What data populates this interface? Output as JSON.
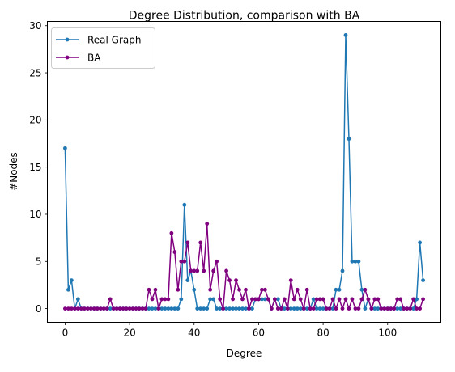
{
  "chart_data": {
    "type": "line",
    "title": "Degree Distribution, comparison with BA",
    "xlabel": "Degree",
    "ylabel": "#Nodes",
    "xlim": [
      -5.5,
      116.5
    ],
    "ylim": [
      -1.45,
      30.45
    ],
    "xticks": [
      0,
      20,
      40,
      60,
      80,
      100
    ],
    "yticks": [
      0,
      5,
      10,
      15,
      20,
      25,
      30
    ],
    "grid": false,
    "legend_position": "top-left",
    "x": [
      0,
      1,
      2,
      3,
      4,
      5,
      6,
      7,
      8,
      9,
      10,
      11,
      12,
      13,
      14,
      15,
      16,
      17,
      18,
      19,
      20,
      21,
      22,
      23,
      24,
      25,
      26,
      27,
      28,
      29,
      30,
      31,
      32,
      33,
      34,
      35,
      36,
      37,
      38,
      39,
      40,
      41,
      42,
      43,
      44,
      45,
      46,
      47,
      48,
      49,
      50,
      51,
      52,
      53,
      54,
      55,
      56,
      57,
      58,
      59,
      60,
      61,
      62,
      63,
      64,
      65,
      66,
      67,
      68,
      69,
      70,
      71,
      72,
      73,
      74,
      75,
      76,
      77,
      78,
      79,
      80,
      81,
      82,
      83,
      84,
      85,
      86,
      87,
      88,
      89,
      90,
      91,
      92,
      93,
      94,
      95,
      96,
      97,
      98,
      99,
      100,
      101,
      102,
      103,
      104,
      105,
      106,
      107,
      108,
      109,
      110,
      111
    ],
    "series": [
      {
        "name": "Real Graph",
        "color": "#1f77b4",
        "values": [
          17,
          2,
          3,
          0,
          1,
          0,
          0,
          0,
          0,
          0,
          0,
          0,
          0,
          0,
          0,
          0,
          0,
          0,
          0,
          0,
          0,
          0,
          0,
          0,
          0,
          0,
          0,
          0,
          0,
          0,
          0,
          0,
          0,
          0,
          0,
          0,
          1,
          11,
          3,
          4,
          2,
          0,
          0,
          0,
          0,
          1,
          1,
          0,
          0,
          0,
          0,
          0,
          0,
          0,
          0,
          0,
          0,
          0,
          0,
          1,
          1,
          1,
          1,
          1,
          0,
          1,
          1,
          0,
          0,
          0,
          0,
          0,
          0,
          0,
          0,
          0,
          0,
          1,
          0,
          0,
          0,
          0,
          0,
          0,
          2,
          2,
          4,
          29,
          18,
          5,
          5,
          5,
          2,
          0,
          1,
          0,
          0,
          0,
          0,
          0,
          0,
          0,
          0,
          0,
          0,
          0,
          0,
          0,
          0,
          1,
          7,
          3
        ]
      },
      {
        "name": "BA",
        "color": "#800080",
        "values": [
          0,
          0,
          0,
          0,
          0,
          0,
          0,
          0,
          0,
          0,
          0,
          0,
          0,
          0,
          1,
          0,
          0,
          0,
          0,
          0,
          0,
          0,
          0,
          0,
          0,
          0,
          2,
          1,
          2,
          0,
          1,
          1,
          1,
          8,
          6,
          2,
          5,
          5,
          7,
          4,
          4,
          4,
          7,
          4,
          9,
          2,
          4,
          5,
          1,
          0,
          4,
          3,
          1,
          3,
          2,
          1,
          2,
          0,
          1,
          1,
          1,
          2,
          2,
          1,
          0,
          1,
          0,
          0,
          1,
          0,
          3,
          1,
          2,
          1,
          0,
          2,
          0,
          0,
          1,
          1,
          1,
          0,
          0,
          1,
          0,
          1,
          0,
          1,
          0,
          1,
          0,
          0,
          1,
          2,
          1,
          0,
          1,
          1,
          0,
          0,
          0,
          0,
          0,
          1,
          1,
          0,
          0,
          0,
          1,
          0,
          0,
          1
        ]
      }
    ]
  }
}
